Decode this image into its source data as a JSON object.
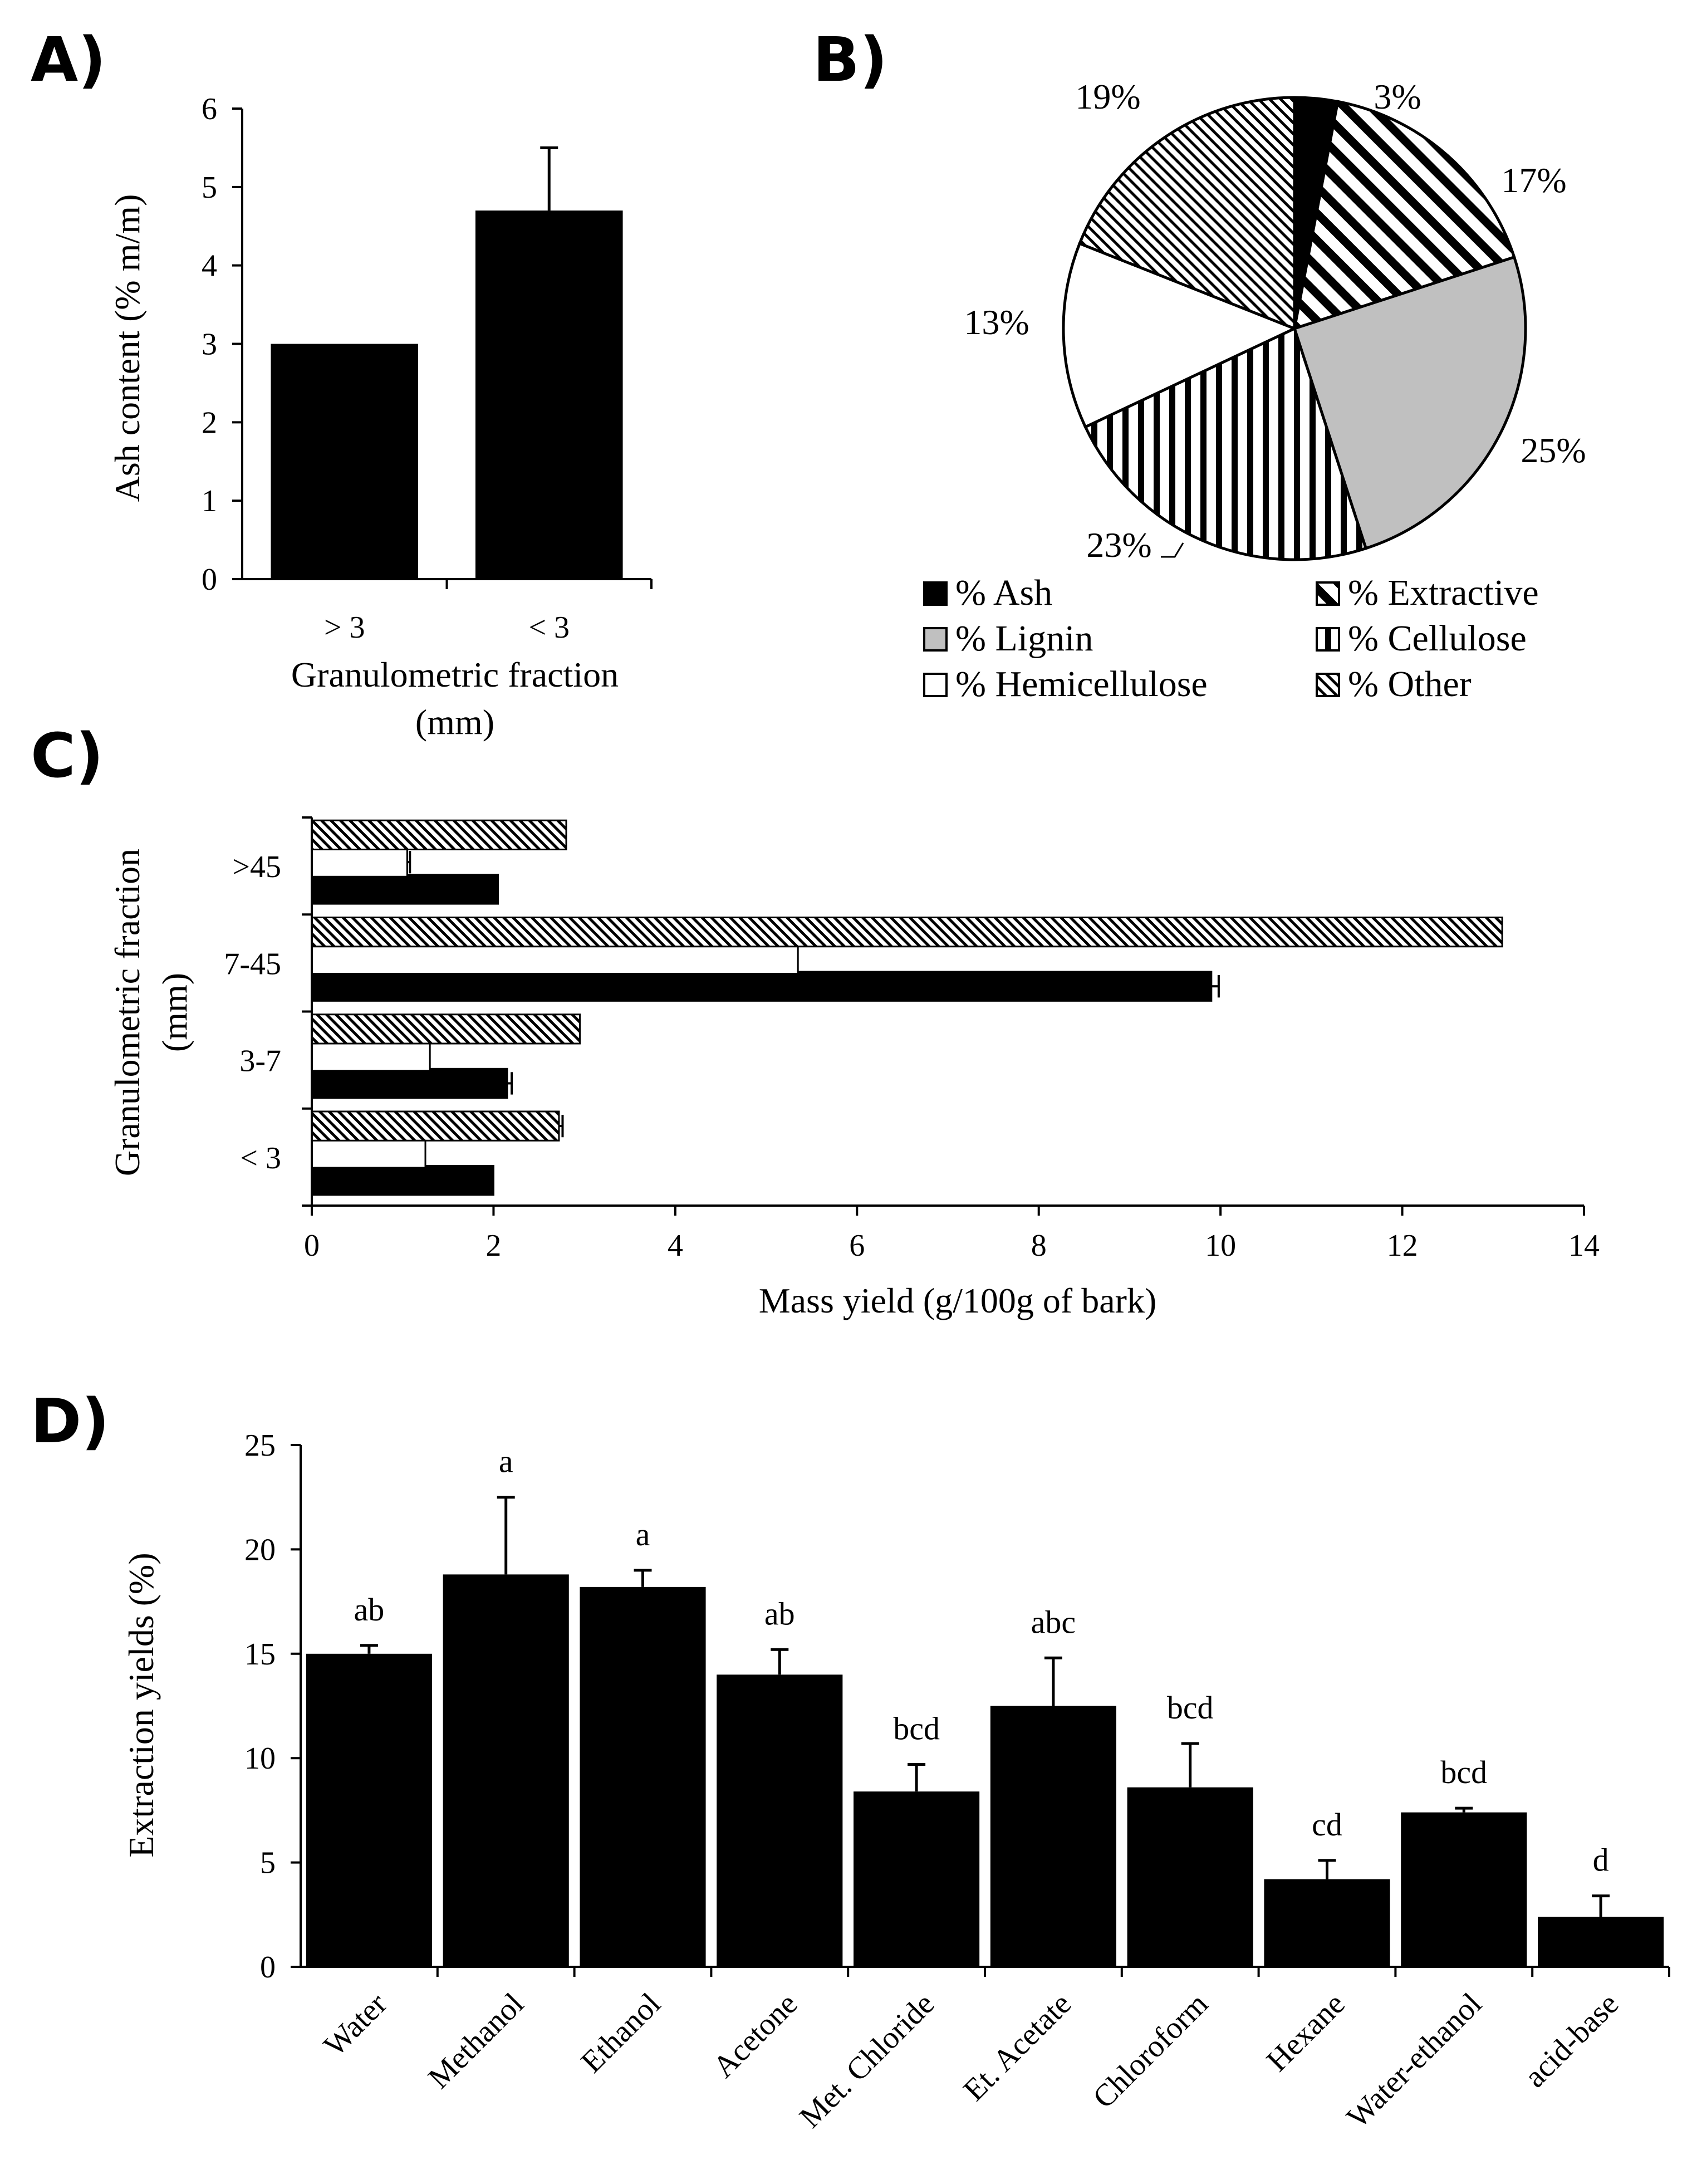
{
  "chart_data": [
    {
      "panel": "A)",
      "type": "bar",
      "categories": [
        "> 3",
        "< 3"
      ],
      "values": [
        3.0,
        4.7
      ],
      "errors": [
        0,
        0.8
      ],
      "xlabel_lines": [
        "Granulometric fraction",
        "(mm)"
      ],
      "ylabel": "Ash content (% m/m)",
      "ylim": [
        0,
        6
      ],
      "yticks": [
        0,
        1,
        2,
        3,
        4,
        5,
        6
      ]
    },
    {
      "panel": "B)",
      "type": "pie",
      "slices": [
        {
          "name": "% Ash",
          "value": 3,
          "label": "3%",
          "fill": "black"
        },
        {
          "name": "% Extractive",
          "value": 17,
          "label": "17%",
          "fill": "diag"
        },
        {
          "name": "% Lignin",
          "value": 25,
          "label": "25%",
          "fill": "gray"
        },
        {
          "name": "% Cellulose",
          "value": 23,
          "label": "23%",
          "fill": "vert"
        },
        {
          "name": "% Hemicellulose",
          "value": 13,
          "label": "13%",
          "fill": "white"
        },
        {
          "name": "% Other",
          "value": 19,
          "label": "19%",
          "fill": "dots"
        }
      ],
      "legend": [
        "% Ash",
        "% Extractive",
        "% Lignin",
        "% Cellulose",
        "% Hemicellulose",
        "% Other"
      ]
    },
    {
      "panel": "C)",
      "type": "bar",
      "orientation": "horizontal",
      "categories": [
        "< 3",
        "3-7",
        "7-45",
        ">45"
      ],
      "series": [
        {
          "name": "black",
          "values": [
            2.0,
            2.15,
            9.9,
            2.05
          ],
          "errors": [
            0,
            0.05,
            0.08,
            0
          ]
        },
        {
          "name": "white",
          "values": [
            1.25,
            1.3,
            5.35,
            1.05
          ],
          "errors": [
            0,
            0,
            0,
            0.03
          ]
        },
        {
          "name": "hatched",
          "values": [
            2.72,
            2.95,
            13.1,
            2.8
          ],
          "errors": [
            0.04,
            0,
            0,
            0
          ]
        }
      ],
      "xlabel": "Mass yield  (g/100g of bark)",
      "ylabel_lines": [
        "Granulometric fraction",
        "(mm)"
      ],
      "xlim": [
        0,
        14
      ],
      "xticks": [
        0,
        2,
        4,
        6,
        8,
        10,
        12,
        14
      ]
    },
    {
      "panel": "D)",
      "type": "bar",
      "categories": [
        "Water",
        "Methanol",
        "Ethanol",
        "Acetone",
        "Met. Chloride",
        "Et. Acetate",
        "Chloroform",
        "Hexane",
        "Water-ethanol",
        "acid-base"
      ],
      "values": [
        15.0,
        18.8,
        18.2,
        14.0,
        8.4,
        12.5,
        8.6,
        4.2,
        7.4,
        2.4
      ],
      "errors": [
        0.4,
        3.7,
        0.8,
        1.2,
        1.3,
        2.3,
        2.1,
        0.9,
        0.2,
        1.0
      ],
      "significance": [
        "ab",
        "a",
        "a",
        "ab",
        "bcd",
        "abc",
        "bcd",
        "cd",
        "bcd",
        "d"
      ],
      "ylabel": "Extraction yields (%)",
      "ylim": [
        0,
        25
      ],
      "yticks": [
        0,
        5,
        10,
        15,
        20,
        25
      ]
    }
  ]
}
